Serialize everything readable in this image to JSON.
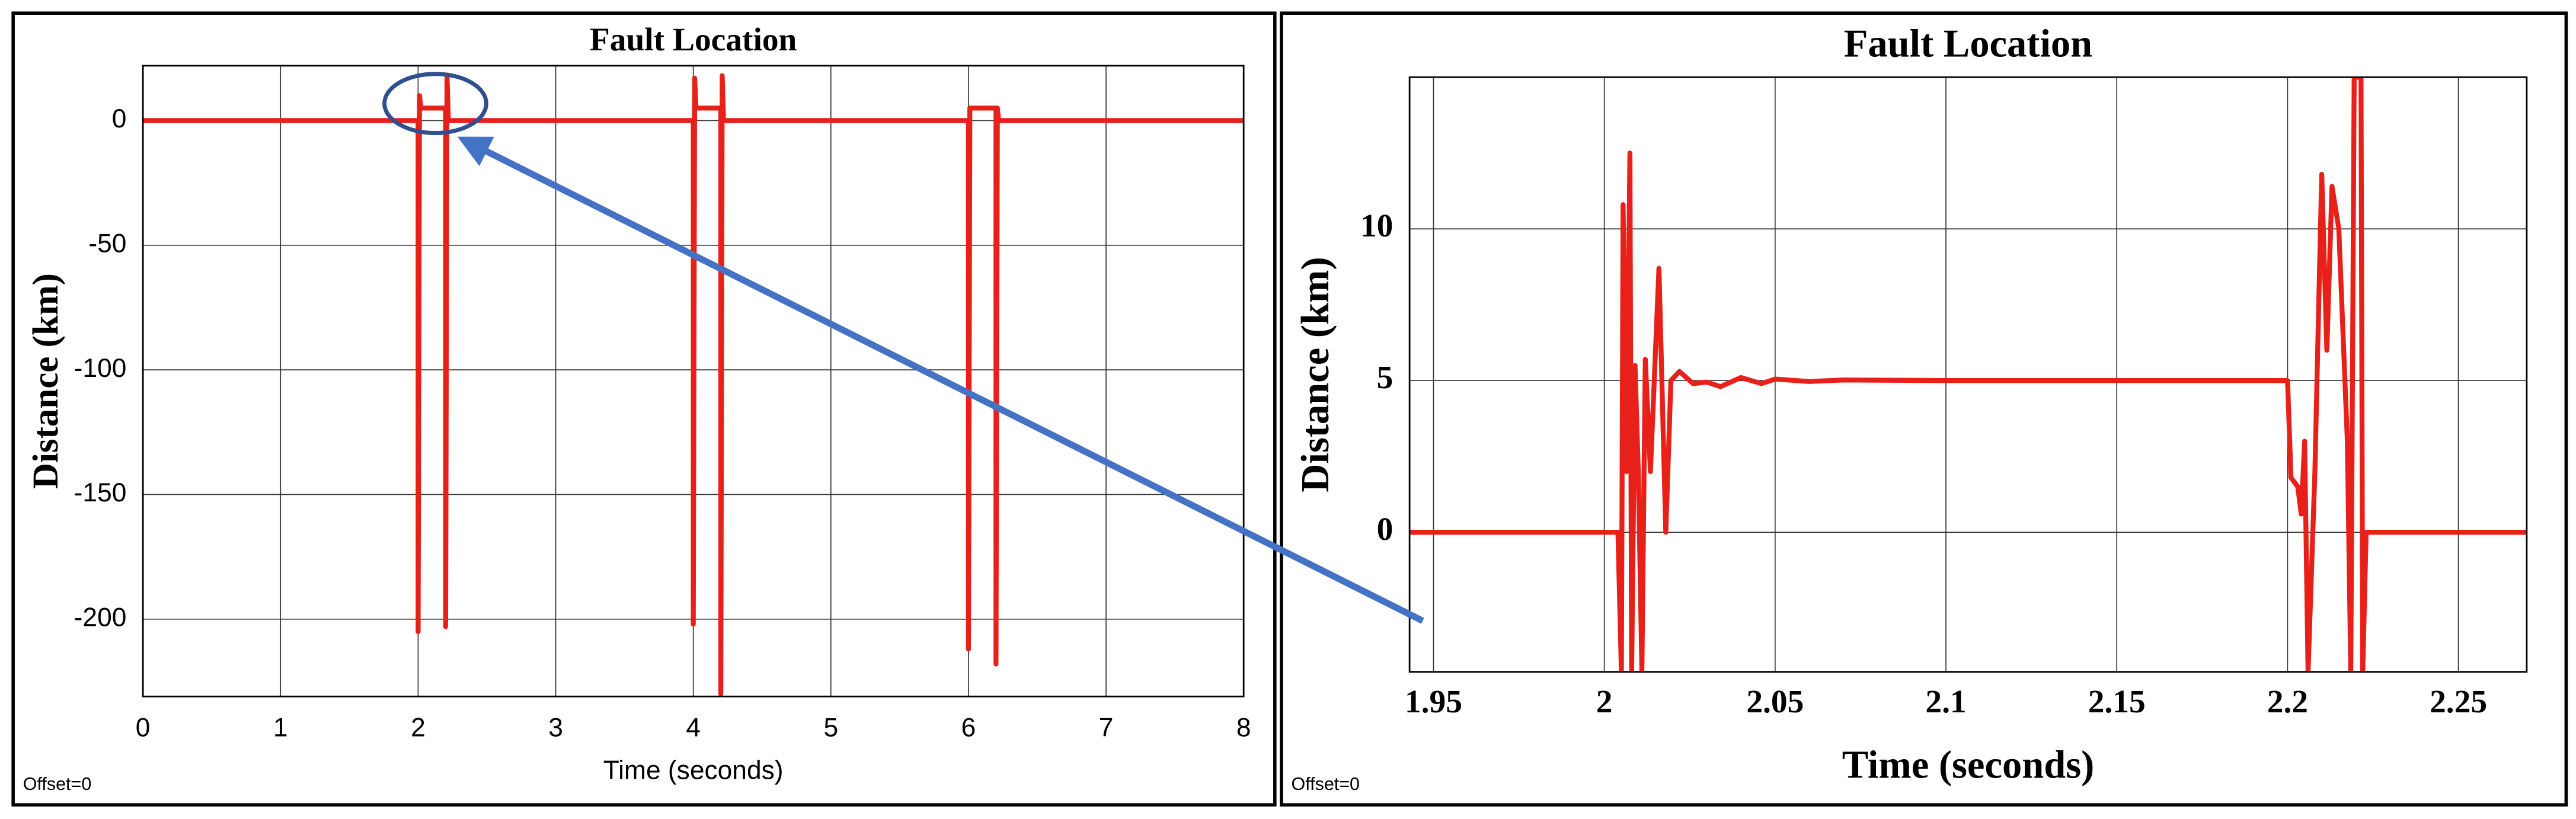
{
  "chart_data": [
    {
      "type": "line",
      "title": "Fault Location",
      "xlabel": "Time (seconds)",
      "ylabel": "Distance (km)",
      "annotation": "Offset=0",
      "xlim": [
        0,
        8
      ],
      "ylim": [
        -231,
        22
      ],
      "xticks": [
        0,
        1,
        2,
        3,
        4,
        5,
        6,
        7,
        8
      ],
      "yticks": [
        0,
        -50,
        -100,
        -150,
        -200
      ],
      "grid": true,
      "series": [
        {
          "color": "#e8201a",
          "x": [
            0,
            2.0,
            2.0,
            2.01,
            2.02,
            2.2,
            2.2,
            2.21,
            2.22,
            4.0,
            4.0,
            4.01,
            4.02,
            4.2,
            4.2,
            4.21,
            4.22,
            6.0,
            6.0,
            6.01,
            6.2,
            6.2,
            6.21,
            6.22,
            8
          ],
          "values": [
            0,
            0,
            -205,
            10,
            5,
            5,
            -203,
            18,
            0,
            0,
            -202,
            17,
            5,
            5,
            -230,
            18,
            0,
            0,
            -212,
            5,
            5,
            -218,
            5,
            0,
            0
          ]
        }
      ]
    },
    {
      "type": "line",
      "title": "Fault Location",
      "xlabel": "Time (seconds)",
      "ylabel": "Distance (km)",
      "annotation": "Offset=0",
      "xlim": [
        1.943,
        2.27
      ],
      "ylim": [
        -4.6,
        15
      ],
      "xticks": [
        1.95,
        2,
        2.05,
        2.1,
        2.15,
        2.2,
        2.25
      ],
      "yticks": [
        0,
        5,
        10
      ],
      "grid": true,
      "series": [
        {
          "color": "#e8201a",
          "x": [
            1.943,
            2.004,
            2.005,
            2.0055,
            2.0065,
            2.0075,
            2.008,
            2.009,
            2.01,
            2.011,
            2.012,
            2.0135,
            2.016,
            2.018,
            2.0195,
            2.022,
            2.026,
            2.03,
            2.034,
            2.04,
            2.046,
            2.05,
            2.06,
            2.07,
            2.1,
            2.2,
            2.201,
            2.203,
            2.204,
            2.205,
            2.206,
            2.208,
            2.21,
            2.2115,
            2.213,
            2.215,
            2.2175,
            2.2185,
            2.2195,
            2.2215,
            2.222,
            2.223,
            2.27
          ],
          "values": [
            0,
            0,
            -4.6,
            10.8,
            2,
            12.5,
            -4.6,
            5.5,
            1.8,
            -4.6,
            5.7,
            2,
            8.7,
            0,
            5.0,
            5.3,
            4.9,
            4.95,
            4.8,
            5.1,
            4.9,
            5.05,
            4.97,
            5.02,
            5.0,
            5.0,
            1.8,
            1.5,
            0.6,
            3,
            -4.6,
            2,
            11.8,
            6,
            11.4,
            10,
            3,
            -4.6,
            15,
            15,
            -4.6,
            0,
            0
          ]
        }
      ]
    }
  ]
}
